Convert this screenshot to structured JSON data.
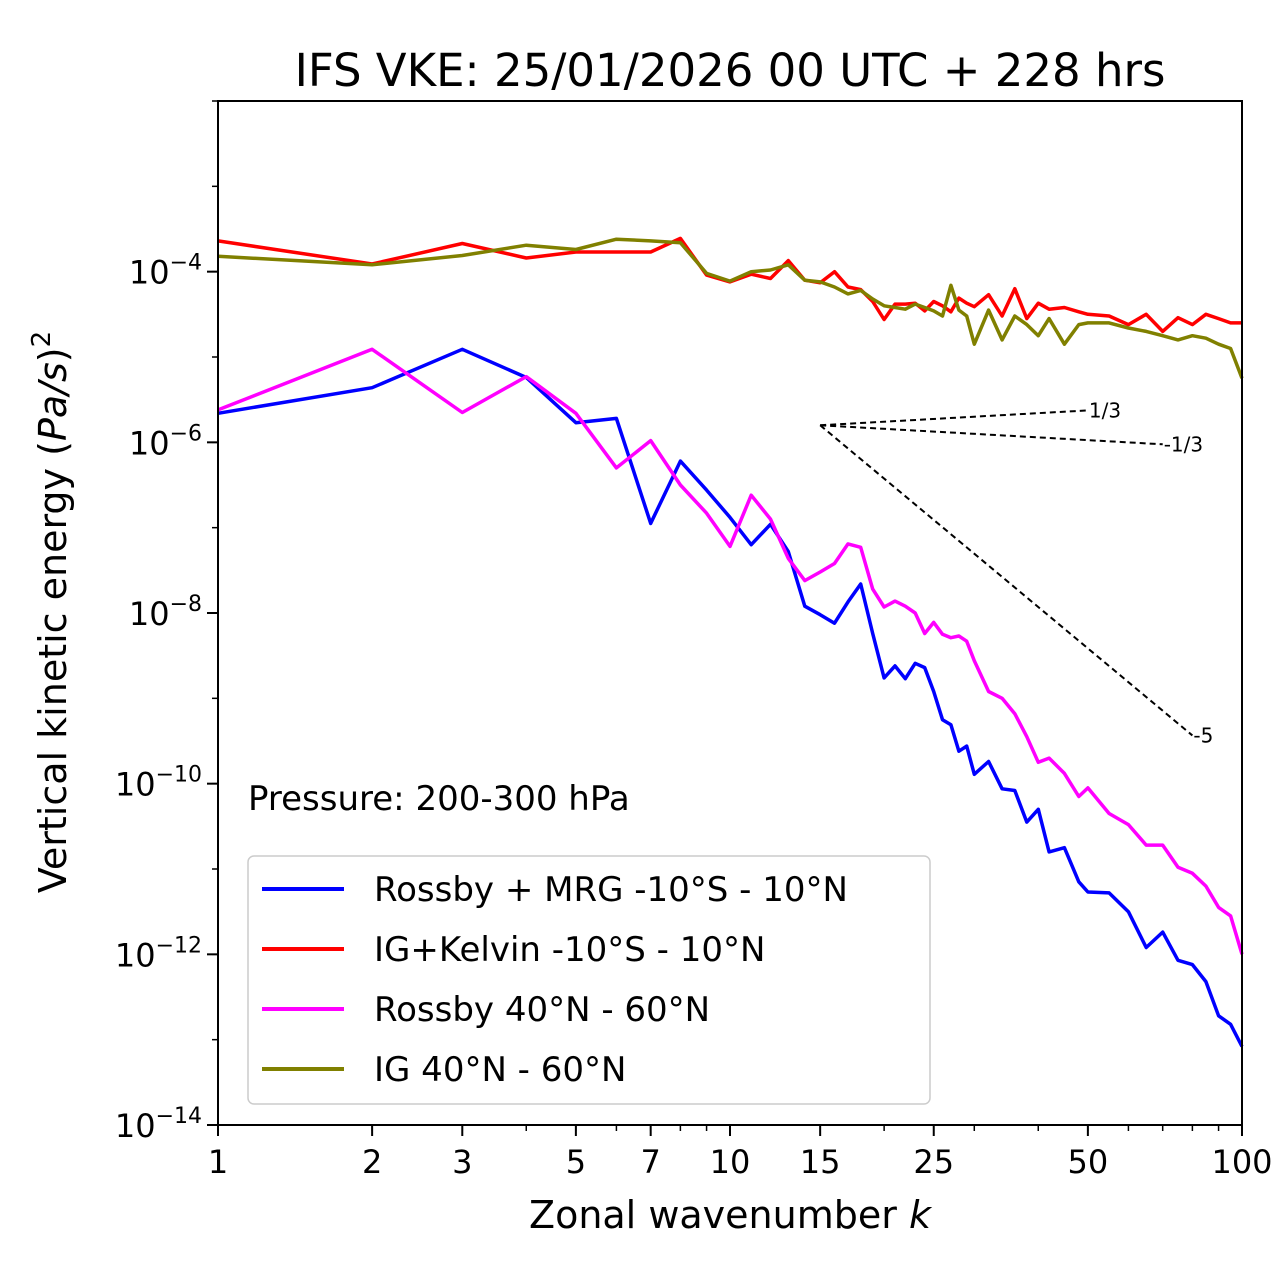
{
  "chart_data": {
    "type": "line",
    "title": "IFS VKE: 25/01/2026 00 UTC + 228 hrs",
    "xlabel_main": "Zonal wavenumber ",
    "xlabel_italic": "k",
    "ylabel_main": "Vertical kinetic energy (",
    "ylabel_italic": "Pa/s",
    "ylabel_close": ")",
    "ylabel_power": "2",
    "xscale": "log",
    "yscale": "log",
    "xlim": [
      1,
      100
    ],
    "ylim": [
      1e-14,
      0.01
    ],
    "x_ticks": [
      1,
      2,
      3,
      5,
      7,
      10,
      15,
      25,
      50,
      100
    ],
    "x_tick_labels": [
      "1",
      "2",
      "3",
      "5",
      "7",
      "10",
      "15",
      "25",
      "50",
      "100"
    ],
    "y_ticks": [
      {
        "value": -4,
        "base": "10",
        "exp": "−4"
      },
      {
        "value": -6,
        "base": "10",
        "exp": "−6"
      },
      {
        "value": -8,
        "base": "10",
        "exp": "−8"
      },
      {
        "value": -10,
        "base": "10",
        "exp": "−10"
      },
      {
        "value": -12,
        "base": "10",
        "exp": "−12"
      },
      {
        "value": -14,
        "base": "10",
        "exp": "−14"
      }
    ],
    "annotation": "Pressure: 200-300 hPa",
    "legend_position": "lower-left",
    "series": [
      {
        "name": "Rossby + MRG -10°S - 10°N",
        "color": "#0000ff",
        "x": [
          1,
          2,
          3,
          4,
          5,
          6,
          7,
          8,
          9,
          10,
          11,
          12,
          13,
          14,
          15,
          16,
          17,
          18,
          19,
          20,
          21,
          22,
          23,
          24,
          25,
          26,
          27,
          28,
          29,
          30,
          32,
          34,
          36,
          38,
          40,
          42,
          45,
          48,
          50,
          55,
          60,
          65,
          70,
          75,
          80,
          85,
          90,
          95,
          100
        ],
        "y_log10": [
          -5.66,
          -5.36,
          -4.91,
          -5.24,
          -5.77,
          -5.72,
          -6.95,
          -6.22,
          -6.56,
          -6.88,
          -7.2,
          -6.96,
          -7.28,
          -7.92,
          -8.02,
          -8.12,
          -7.87,
          -7.66,
          -8.24,
          -8.76,
          -8.62,
          -8.77,
          -8.59,
          -8.64,
          -8.92,
          -9.25,
          -9.31,
          -9.62,
          -9.56,
          -9.89,
          -9.74,
          -10.06,
          -10.08,
          -10.45,
          -10.3,
          -10.8,
          -10.75,
          -11.15,
          -11.27,
          -11.28,
          -11.5,
          -11.92,
          -11.74,
          -12.07,
          -12.12,
          -12.32,
          -12.72,
          -12.82,
          -13.08
        ]
      },
      {
        "name": "IG+Kelvin -10°S - 10°N",
        "color": "#ff0000",
        "x": [
          1,
          2,
          3,
          4,
          5,
          6,
          7,
          8,
          9,
          10,
          11,
          12,
          13,
          14,
          15,
          16,
          17,
          18,
          19,
          20,
          21,
          22,
          23,
          24,
          25,
          26,
          27,
          28,
          29,
          30,
          32,
          34,
          36,
          38,
          40,
          42,
          45,
          48,
          50,
          55,
          60,
          65,
          70,
          75,
          80,
          85,
          90,
          95,
          100
        ],
        "y_log10": [
          -3.64,
          -3.91,
          -3.67,
          -3.84,
          -3.77,
          -3.77,
          -3.77,
          -3.61,
          -4.04,
          -4.12,
          -4.03,
          -4.08,
          -3.87,
          -4.1,
          -4.13,
          -4.0,
          -4.18,
          -4.21,
          -4.35,
          -4.56,
          -4.38,
          -4.38,
          -4.37,
          -4.46,
          -4.35,
          -4.4,
          -4.47,
          -4.31,
          -4.37,
          -4.41,
          -4.27,
          -4.52,
          -4.2,
          -4.55,
          -4.37,
          -4.44,
          -4.42,
          -4.47,
          -4.5,
          -4.52,
          -4.62,
          -4.5,
          -4.7,
          -4.54,
          -4.62,
          -4.5,
          -4.55,
          -4.6,
          -4.6
        ]
      },
      {
        "name": "Rossby 40°N - 60°N",
        "color": "#ff00ff",
        "x": [
          1,
          2,
          3,
          4,
          5,
          6,
          7,
          8,
          9,
          10,
          11,
          12,
          13,
          14,
          15,
          16,
          17,
          18,
          19,
          20,
          21,
          22,
          23,
          24,
          25,
          26,
          27,
          28,
          29,
          30,
          32,
          34,
          36,
          38,
          40,
          42,
          45,
          48,
          50,
          55,
          60,
          65,
          70,
          75,
          80,
          85,
          90,
          95,
          100
        ],
        "y_log10": [
          -5.62,
          -4.91,
          -5.65,
          -5.23,
          -5.66,
          -6.3,
          -5.98,
          -6.5,
          -6.83,
          -7.22,
          -6.62,
          -6.9,
          -7.36,
          -7.62,
          -7.52,
          -7.42,
          -7.19,
          -7.23,
          -7.72,
          -7.93,
          -7.86,
          -7.92,
          -8.0,
          -8.24,
          -8.11,
          -8.25,
          -8.29,
          -8.27,
          -8.33,
          -8.56,
          -8.92,
          -9.0,
          -9.18,
          -9.45,
          -9.75,
          -9.7,
          -9.88,
          -10.15,
          -10.05,
          -10.35,
          -10.48,
          -10.72,
          -10.72,
          -10.98,
          -11.05,
          -11.2,
          -11.45,
          -11.55,
          -12.0
        ]
      },
      {
        "name": "IG 40°N - 60°N",
        "color": "#808000",
        "x": [
          1,
          2,
          3,
          4,
          5,
          6,
          7,
          8,
          9,
          10,
          11,
          12,
          13,
          14,
          15,
          16,
          17,
          18,
          19,
          20,
          21,
          22,
          23,
          24,
          25,
          26,
          27,
          28,
          29,
          30,
          32,
          34,
          36,
          38,
          40,
          42,
          45,
          48,
          50,
          55,
          60,
          65,
          70,
          75,
          80,
          85,
          90,
          95,
          100
        ],
        "y_log10": [
          -3.82,
          -3.92,
          -3.81,
          -3.69,
          -3.74,
          -3.62,
          -3.64,
          -3.66,
          -4.02,
          -4.11,
          -4.0,
          -3.98,
          -3.92,
          -4.1,
          -4.12,
          -4.18,
          -4.26,
          -4.22,
          -4.32,
          -4.4,
          -4.42,
          -4.44,
          -4.38,
          -4.42,
          -4.46,
          -4.52,
          -4.16,
          -4.45,
          -4.52,
          -4.85,
          -4.45,
          -4.8,
          -4.52,
          -4.62,
          -4.75,
          -4.55,
          -4.85,
          -4.62,
          -4.6,
          -4.6,
          -4.66,
          -4.7,
          -4.75,
          -4.8,
          -4.75,
          -4.78,
          -4.85,
          -4.9,
          -5.25
        ]
      }
    ],
    "reference_slopes": [
      {
        "label": "1/3",
        "x0": 15,
        "x1": 50,
        "y0_log10": -5.8
      },
      {
        "label": "-1/3",
        "x0": 15,
        "x1": 70,
        "y0_log10": -5.8
      },
      {
        "label": "-5",
        "x0": 15,
        "x1": 80,
        "y0_log10": -5.8
      }
    ]
  }
}
